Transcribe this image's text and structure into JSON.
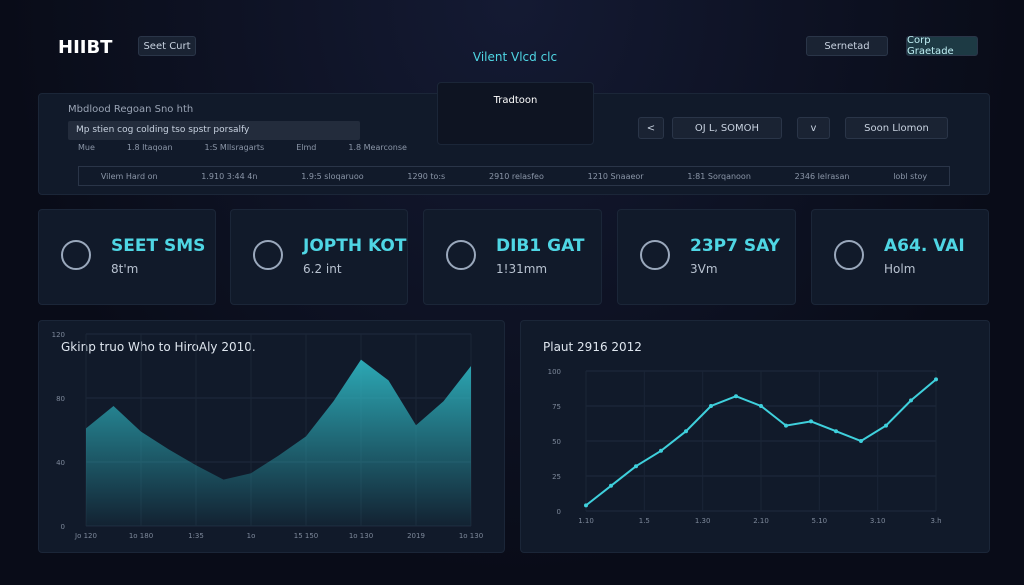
{
  "header": {
    "logo": "HIIBT",
    "button": "Seet Curt",
    "center_title": "Vilent Vlcd clc",
    "dropdown": "Tradtoon",
    "right_button_1": "Sernetad",
    "right_button_2": "Corp Graetade"
  },
  "filters": {
    "title": "Mbdlood Regoan Sno hth",
    "input": "Mp stien cog colding tso spstr porsalfy",
    "labels": [
      "Mue",
      "1.8 Itaqoan",
      "1:S Mllsragarts",
      "Elmd",
      "1.8 Mearconse"
    ],
    "row": [
      "Vilem Hard on",
      "1.910 3:44 4n",
      "1.9:5 sloqaruoo",
      "1290 to:s",
      "2910 relasfeo",
      "1210 Snaaeor",
      "1:81 Sorqanoon",
      "2346 Ielrasan",
      "lobl stoy"
    ],
    "control_1": "OJ L, SOMOH",
    "control_2": "Soon Llomon"
  },
  "stats": [
    {
      "title": "SEET SMS",
      "sub": "8t'm"
    },
    {
      "title": "JOPTH KOT",
      "sub": "6.2 int"
    },
    {
      "title": "DIB1 GAT",
      "sub": "1!31mm"
    },
    {
      "title": "23P7 SAY",
      "sub": "3Vm"
    },
    {
      "title": "A64. VAI",
      "sub": "Holm"
    }
  ],
  "charts": [
    {
      "type": "area",
      "title": "Gkinp truo Who to HiroAly 2010.",
      "color": "#2fb8c4",
      "values": [
        61,
        75,
        59,
        48,
        38,
        29,
        33,
        44,
        56,
        78,
        104,
        91,
        63,
        78,
        100
      ],
      "ylim": [
        0,
        120
      ],
      "yticks": [
        0,
        40,
        80,
        120
      ],
      "xlabels": [
        "Jo 120",
        "1o 180",
        "1:35",
        "1o",
        "15 150",
        "1o 130",
        "2019",
        "1o 130"
      ]
    },
    {
      "type": "line",
      "title": "Plaut 2916 2012",
      "color": "#3fd0dc",
      "values": [
        4,
        18,
        32,
        43,
        57,
        75,
        82,
        75,
        61,
        64,
        57,
        50,
        61,
        79,
        94
      ],
      "ylim": [
        0,
        100
      ],
      "yticks": [
        0,
        25,
        50,
        75,
        100
      ],
      "xlabels": [
        "1.10",
        "1.5",
        "1.30",
        "2.10",
        "5.10",
        "3.10",
        "3.h"
      ]
    }
  ]
}
